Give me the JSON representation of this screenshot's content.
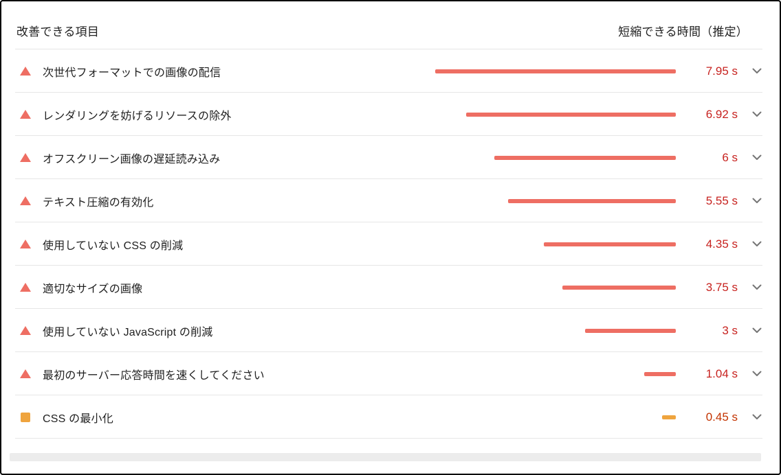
{
  "header": {
    "item_column": "改善できる項目",
    "time_column": "短縮できる時間（推定）"
  },
  "opportunities": [
    {
      "label": "次世代フォーマットでの画像の配信",
      "seconds": 7.95,
      "display": "7.95 s",
      "severity": "fail"
    },
    {
      "label": "レンダリングを妨げるリソースの除外",
      "seconds": 6.92,
      "display": "6.92 s",
      "severity": "fail"
    },
    {
      "label": "オフスクリーン画像の遅延読み込み",
      "seconds": 6,
      "display": "6 s",
      "severity": "fail"
    },
    {
      "label": "テキスト圧縮の有効化",
      "seconds": 5.55,
      "display": "5.55 s",
      "severity": "fail"
    },
    {
      "label": "使用していない CSS の削減",
      "seconds": 4.35,
      "display": "4.35 s",
      "severity": "fail"
    },
    {
      "label": "適切なサイズの画像",
      "seconds": 3.75,
      "display": "3.75 s",
      "severity": "fail"
    },
    {
      "label": "使用していない JavaScript の削減",
      "seconds": 3,
      "display": "3 s",
      "severity": "fail"
    },
    {
      "label": "最初のサーバー応答時間を速くしてください",
      "seconds": 1.04,
      "display": "1.04 s",
      "severity": "fail"
    },
    {
      "label": "CSS の最小化",
      "seconds": 0.45,
      "display": "0.45 s",
      "severity": "average"
    }
  ],
  "bar": {
    "max_seconds": 7.95
  },
  "colors": {
    "fail_bar": "#ee6e63",
    "fail_text": "#c7221f",
    "average_bar": "#efa43e",
    "average_text": "#c33300",
    "chevron": "#757575",
    "divider": "#e6e6e6"
  },
  "icons": {
    "fail": "triangle-warning-icon",
    "average": "square-warning-icon",
    "expand": "chevron-down-icon"
  }
}
